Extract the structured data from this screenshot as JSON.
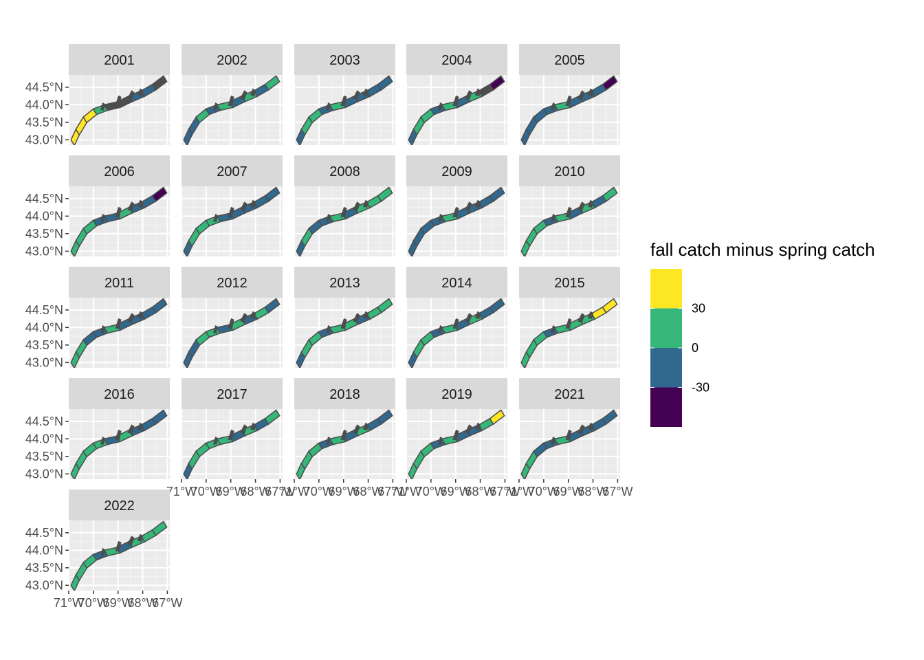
{
  "chart_data": {
    "type": "map",
    "facet_variable": "year",
    "facets": [
      "2001",
      "2002",
      "2003",
      "2004",
      "2005",
      "2006",
      "2007",
      "2008",
      "2009",
      "2010",
      "2011",
      "2012",
      "2013",
      "2014",
      "2015",
      "2016",
      "2017",
      "2018",
      "2019",
      "2021",
      "2022"
    ],
    "x_axis": {
      "tick_values": [
        -71,
        -70,
        -69,
        -68,
        -67
      ],
      "tick_labels": [
        "71°W",
        "70°W",
        "69°W",
        "68°W",
        "67°W"
      ],
      "range": [
        -71.0,
        -66.9
      ]
    },
    "y_axis": {
      "tick_values": [
        43.0,
        43.5,
        44.0,
        44.5
      ],
      "tick_labels": [
        "43.0°N",
        "43.5°N",
        "44.0°N",
        "44.5°N"
      ],
      "range": [
        42.85,
        44.85
      ]
    },
    "legend": {
      "title": "fall catch minus spring catch",
      "position": "right",
      "bins": [
        {
          "range": "> 30",
          "color": "#FDE725"
        },
        {
          "range": "0 to 30",
          "color": "#35B779"
        },
        {
          "range": "-30 to 0",
          "color": "#31688E"
        },
        {
          "range": "< -30",
          "color": "#440154"
        }
      ],
      "break_labels": [
        "30",
        "0",
        "-30"
      ]
    },
    "region_colors": {
      "high": "#FDE725",
      "positive": "#35B779",
      "negative": "#31688E",
      "low": "#440154",
      "unsampled": "#4D4D4D"
    },
    "panel_background": "#EBEBEB",
    "strip_background": "#D9D9D9",
    "grid": true,
    "regions_per_year": {
      "2001": [
        "high",
        "high",
        "high",
        "positive",
        "unsampled",
        "unsampled",
        "negative",
        "negative",
        "unsampled",
        "positive"
      ],
      "2002": [
        "negative",
        "negative",
        "positive",
        "negative",
        "positive",
        "negative",
        "positive",
        "negative",
        "positive",
        "positive"
      ],
      "2003": [
        "negative",
        "positive",
        "positive",
        "negative",
        "positive",
        "negative",
        "negative",
        "negative",
        "negative",
        "negative"
      ],
      "2004": [
        "negative",
        "positive",
        "positive",
        "negative",
        "positive",
        "negative",
        "positive",
        "unsampled",
        "low",
        "negative"
      ],
      "2005": [
        "negative",
        "negative",
        "negative",
        "negative",
        "positive",
        "negative",
        "negative",
        "negative",
        "low",
        "unsampled"
      ],
      "2006": [
        "positive",
        "positive",
        "positive",
        "negative",
        "negative",
        "positive",
        "negative",
        "negative",
        "low",
        "positive"
      ],
      "2007": [
        "negative",
        "positive",
        "positive",
        "positive",
        "negative",
        "negative",
        "negative",
        "negative",
        "negative",
        "negative"
      ],
      "2008": [
        "negative",
        "positive",
        "negative",
        "negative",
        "positive",
        "negative",
        "positive",
        "positive",
        "positive",
        "positive"
      ],
      "2009": [
        "negative",
        "negative",
        "negative",
        "negative",
        "positive",
        "negative",
        "negative",
        "negative",
        "negative",
        "negative"
      ],
      "2010": [
        "positive",
        "positive",
        "positive",
        "negative",
        "positive",
        "negative",
        "positive",
        "negative",
        "positive",
        "positive"
      ],
      "2011": [
        "positive",
        "positive",
        "negative",
        "negative",
        "positive",
        "negative",
        "negative",
        "negative",
        "negative",
        "negative"
      ],
      "2012": [
        "negative",
        "negative",
        "positive",
        "positive",
        "negative",
        "positive",
        "negative",
        "positive",
        "negative",
        "positive"
      ],
      "2013": [
        "negative",
        "positive",
        "positive",
        "negative",
        "positive",
        "positive",
        "negative",
        "positive",
        "positive",
        "positive"
      ],
      "2014": [
        "negative",
        "positive",
        "positive",
        "negative",
        "positive",
        "negative",
        "positive",
        "negative",
        "negative",
        "negative"
      ],
      "2015": [
        "positive",
        "positive",
        "positive",
        "negative",
        "positive",
        "positive",
        "positive",
        "high",
        "high",
        "high"
      ],
      "2016": [
        "positive",
        "positive",
        "positive",
        "positive",
        "negative",
        "positive",
        "negative",
        "negative",
        "negative",
        "negative"
      ],
      "2017": [
        "negative",
        "positive",
        "positive",
        "positive",
        "positive",
        "negative",
        "positive",
        "negative",
        "positive",
        "positive"
      ],
      "2018": [
        "positive",
        "positive",
        "positive",
        "negative",
        "positive",
        "negative",
        "positive",
        "negative",
        "negative",
        "negative"
      ],
      "2019": [
        "positive",
        "positive",
        "positive",
        "negative",
        "positive",
        "negative",
        "negative",
        "positive",
        "high",
        "negative"
      ],
      "2021": [
        "positive",
        "positive",
        "negative",
        "negative",
        "positive",
        "negative",
        "negative",
        "negative",
        "negative",
        "negative"
      ],
      "2022": [
        "positive",
        "positive",
        "positive",
        "negative",
        "positive",
        "negative",
        "positive",
        "positive",
        "positive",
        "positive"
      ]
    }
  }
}
